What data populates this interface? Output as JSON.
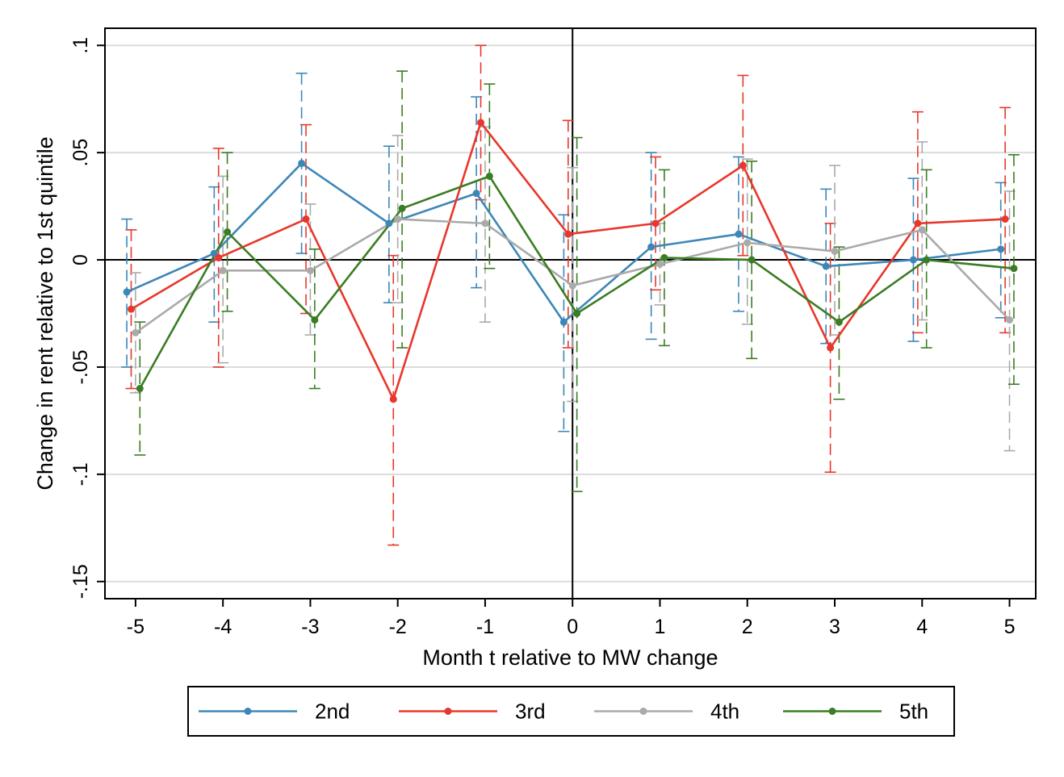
{
  "chart_data": {
    "type": "line",
    "xlabel": "Month t relative to MW change",
    "ylabel": "Change in rent relative to 1st quintile",
    "x": [
      -5,
      -4,
      -3,
      -2,
      -1,
      0,
      1,
      2,
      3,
      4,
      5
    ],
    "x_ticks": [
      "-5",
      "-4",
      "-3",
      "-2",
      "-1",
      "0",
      "1",
      "2",
      "3",
      "4",
      "5"
    ],
    "y_ticks": [
      {
        "value": 0.1,
        "label": ".1"
      },
      {
        "value": 0.05,
        "label": ".05"
      },
      {
        "value": 0,
        "label": "0"
      },
      {
        "value": -0.05,
        "label": "-.05"
      },
      {
        "value": -0.1,
        "label": "-.1"
      },
      {
        "value": -0.15,
        "label": "-.15"
      }
    ],
    "xlim": [
      -5.35,
      5.3
    ],
    "ylim": [
      -0.158,
      0.108
    ],
    "grid": "horizontal",
    "reference_lines": {
      "x": 0,
      "y": 0
    },
    "legend_position": "bottom",
    "series": [
      {
        "name": "2nd",
        "color": "#3d87b8",
        "offset": -0.1,
        "values": [
          -0.015,
          0.003,
          0.045,
          0.017,
          0.031,
          -0.029,
          0.006,
          0.012,
          -0.003,
          0.0,
          0.005
        ],
        "ci_low": [
          -0.05,
          -0.029,
          0.003,
          -0.02,
          -0.013,
          -0.08,
          -0.037,
          -0.024,
          -0.039,
          -0.038,
          -0.027
        ],
        "ci_high": [
          0.019,
          0.034,
          0.087,
          0.053,
          0.076,
          0.021,
          0.05,
          0.048,
          0.033,
          0.038,
          0.036
        ]
      },
      {
        "name": "3rd",
        "color": "#e8372c",
        "offset": -0.05,
        "values": [
          -0.023,
          0.001,
          0.019,
          -0.065,
          0.064,
          0.012,
          0.017,
          0.044,
          -0.041,
          0.017,
          0.019
        ],
        "ci_low": [
          -0.06,
          -0.05,
          -0.025,
          -0.133,
          0.028,
          -0.041,
          -0.014,
          0.002,
          -0.099,
          -0.034,
          -0.034
        ],
        "ci_high": [
          0.014,
          0.052,
          0.063,
          0.002,
          0.1,
          0.065,
          0.048,
          0.086,
          0.017,
          0.069,
          0.071
        ]
      },
      {
        "name": "4th",
        "color": "#aaaaaa",
        "offset": 0.0,
        "values": [
          -0.034,
          -0.005,
          -0.005,
          0.019,
          0.017,
          -0.012,
          -0.002,
          0.008,
          0.004,
          0.014,
          -0.028
        ],
        "ci_low": [
          -0.062,
          -0.048,
          -0.035,
          -0.02,
          -0.029,
          -0.066,
          -0.021,
          -0.03,
          -0.035,
          -0.028,
          -0.089
        ],
        "ci_high": [
          -0.006,
          0.039,
          0.026,
          0.058,
          0.062,
          0.043,
          0.017,
          0.047,
          0.044,
          0.055,
          0.032
        ]
      },
      {
        "name": "5th",
        "color": "#3a7d23",
        "offset": 0.05,
        "values": [
          -0.06,
          0.013,
          -0.028,
          0.024,
          0.039,
          -0.025,
          0.001,
          0.0,
          -0.029,
          0.0,
          -0.004
        ],
        "ci_low": [
          -0.091,
          -0.024,
          -0.06,
          -0.041,
          -0.004,
          -0.108,
          -0.04,
          -0.046,
          -0.065,
          -0.041,
          -0.058
        ],
        "ci_high": [
          -0.029,
          0.05,
          0.005,
          0.088,
          0.082,
          0.057,
          0.042,
          0.046,
          0.006,
          0.042,
          0.049
        ]
      }
    ]
  }
}
